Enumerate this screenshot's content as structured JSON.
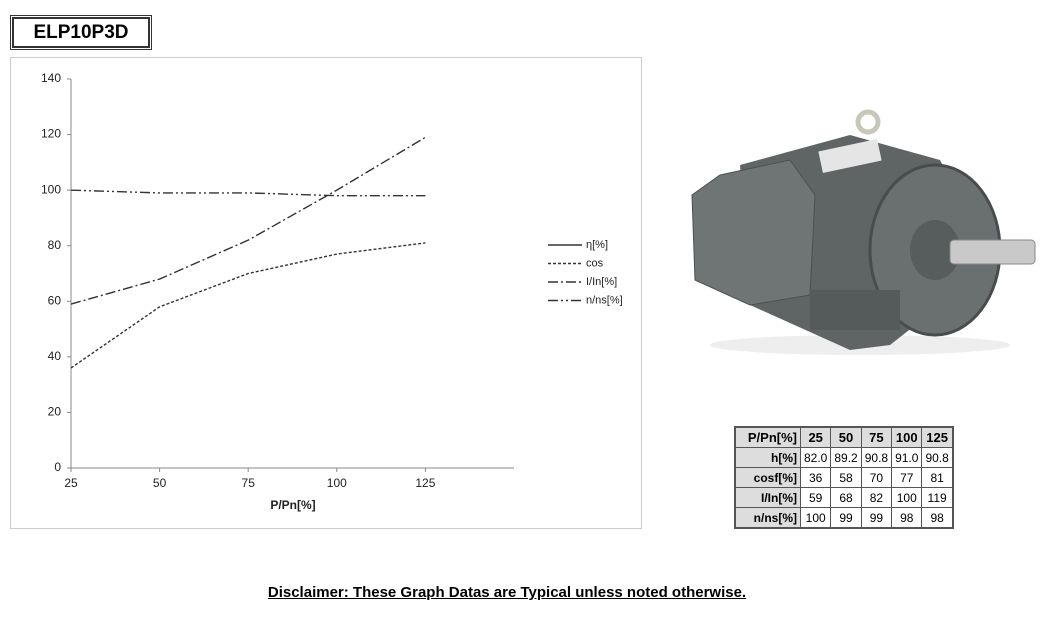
{
  "header_title": "ELP10P3D",
  "chart_data": {
    "type": "line",
    "x_label": "P/Pn[%]",
    "x": [
      25,
      50,
      75,
      100,
      125
    ],
    "xlim": [
      25,
      150
    ],
    "xticks": [
      25,
      50,
      75,
      100,
      125
    ],
    "ylim": [
      0,
      140
    ],
    "yticks": [
      0,
      20,
      40,
      60,
      80,
      100,
      120,
      140
    ],
    "legend": "right",
    "series": [
      {
        "name": "η[%]",
        "color": "#333333",
        "dash": "solid",
        "values": [
          null,
          null,
          null,
          null,
          null
        ]
      },
      {
        "name": "cos",
        "color": "#333333",
        "dash": "dashed",
        "values": [
          36,
          58,
          70,
          77,
          81
        ]
      },
      {
        "name": "I/In[%]",
        "color": "#333333",
        "dash": "dashdot",
        "values": [
          59,
          68,
          82,
          100,
          119
        ]
      },
      {
        "name": "n/ns[%]",
        "color": "#333333",
        "dash": "dashdotdot",
        "values": [
          100,
          99,
          99,
          98,
          98
        ]
      }
    ]
  },
  "table": {
    "header": [
      "P/Pn[%]",
      "25",
      "50",
      "75",
      "100",
      "125"
    ],
    "rows": [
      [
        "h[%]",
        "82.0",
        "89.2",
        "90.8",
        "91.0",
        "90.8"
      ],
      [
        "cosf[%]",
        "36",
        "58",
        "70",
        "77",
        "81"
      ],
      [
        "I/In[%]",
        "59",
        "68",
        "82",
        "100",
        "119"
      ],
      [
        "n/ns[%]",
        "100",
        "99",
        "99",
        "98",
        "98"
      ]
    ]
  },
  "disclaimer": "Disclaimer: These Graph Datas are Typical unless noted otherwise."
}
